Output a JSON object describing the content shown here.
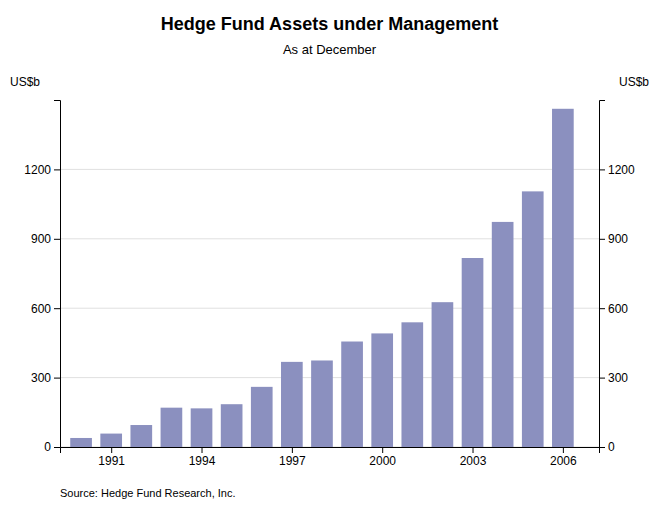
{
  "chart_data": {
    "type": "bar",
    "title": "Hedge Fund Assets under Management",
    "subtitle": "As at December",
    "ylabel": "US$b",
    "y2label": "US$b",
    "source": "Source: Hedge Fund Research, Inc.",
    "x": [
      1990,
      1991,
      1992,
      1993,
      1994,
      1995,
      1996,
      1997,
      1998,
      1999,
      2000,
      2001,
      2002,
      2003,
      2004,
      2005,
      2006
    ],
    "values": [
      39,
      58,
      95,
      170,
      167,
      185,
      260,
      368,
      374,
      456,
      491,
      539,
      626,
      817,
      973,
      1105,
      1462
    ],
    "color": "#8b90bf",
    "xlim": [
      1989.3,
      2007.2
    ],
    "xticks": [
      1991,
      1994,
      1997,
      2000,
      2003,
      2006
    ],
    "ylim": [
      0,
      1500
    ],
    "yticks": [
      0,
      300,
      600,
      900,
      1200
    ],
    "y2lim": [
      0,
      1500
    ],
    "y2ticks": [
      0,
      300,
      600,
      900,
      1200
    ],
    "grid": true
  }
}
